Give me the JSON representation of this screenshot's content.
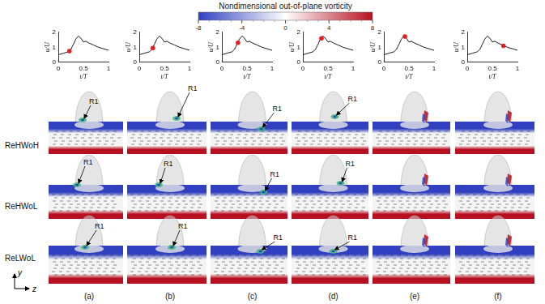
{
  "chart_data": [
    {
      "type": "line",
      "x_label": "t/T",
      "y_label": "u/U",
      "color": "#000000",
      "x": [
        0,
        0.1,
        0.2,
        0.25,
        0.3,
        0.35,
        0.4,
        0.45,
        0.5,
        0.55,
        0.6,
        0.7,
        0.8,
        0.9,
        1
      ],
      "values": [
        0.5,
        0.6,
        0.7,
        0.85,
        1.2,
        1.55,
        1.75,
        1.6,
        1.35,
        1.4,
        1.3,
        1.15,
        1.0,
        0.9,
        0.8
      ],
      "highlight": {
        "x": 0.22,
        "y": 0.75,
        "color": "#e02020"
      },
      "xlim": [
        0,
        1
      ],
      "xticks": [
        0,
        0.5,
        1
      ],
      "ylim": [
        0,
        2
      ],
      "yticks": [
        0,
        1,
        2
      ]
    },
    {
      "type": "line",
      "x_label": "t/T",
      "y_label": "u/U",
      "color": "#000000",
      "x": [
        0,
        0.1,
        0.2,
        0.25,
        0.3,
        0.35,
        0.4,
        0.45,
        0.5,
        0.55,
        0.6,
        0.7,
        0.8,
        0.9,
        1
      ],
      "values": [
        0.5,
        0.6,
        0.7,
        0.85,
        1.2,
        1.55,
        1.75,
        1.6,
        1.35,
        1.4,
        1.3,
        1.15,
        1.0,
        0.9,
        0.8
      ],
      "highlight": {
        "x": 0.27,
        "y": 0.95,
        "color": "#e02020"
      },
      "xlim": [
        0,
        1
      ],
      "xticks": [
        0,
        0.5,
        1
      ],
      "ylim": [
        0,
        2
      ],
      "yticks": [
        0,
        1,
        2
      ]
    },
    {
      "type": "line",
      "x_label": "t/T",
      "y_label": "u/U",
      "color": "#000000",
      "x": [
        0,
        0.1,
        0.2,
        0.25,
        0.3,
        0.35,
        0.4,
        0.45,
        0.5,
        0.55,
        0.6,
        0.7,
        0.8,
        0.9,
        1
      ],
      "values": [
        0.5,
        0.6,
        0.7,
        0.85,
        1.2,
        1.55,
        1.75,
        1.6,
        1.35,
        1.4,
        1.3,
        1.15,
        1.0,
        0.9,
        0.8
      ],
      "highlight": {
        "x": 0.32,
        "y": 1.3,
        "color": "#e02020"
      },
      "xlim": [
        0,
        1
      ],
      "xticks": [
        0,
        0.5,
        1
      ],
      "ylim": [
        0,
        2
      ],
      "yticks": [
        0,
        1,
        2
      ]
    },
    {
      "type": "line",
      "x_label": "t/T",
      "y_label": "u/U",
      "color": "#000000",
      "x": [
        0,
        0.1,
        0.2,
        0.25,
        0.3,
        0.35,
        0.4,
        0.45,
        0.5,
        0.55,
        0.6,
        0.7,
        0.8,
        0.9,
        1
      ],
      "values": [
        0.5,
        0.6,
        0.7,
        0.85,
        1.2,
        1.55,
        1.75,
        1.6,
        1.35,
        1.4,
        1.3,
        1.15,
        1.0,
        0.9,
        0.8
      ],
      "highlight": {
        "x": 0.37,
        "y": 1.6,
        "color": "#e02020"
      },
      "xlim": [
        0,
        1
      ],
      "xticks": [
        0,
        0.5,
        1
      ],
      "ylim": [
        0,
        2
      ],
      "yticks": [
        0,
        1,
        2
      ]
    },
    {
      "type": "line",
      "x_label": "t/T",
      "y_label": "u/U",
      "color": "#000000",
      "x": [
        0,
        0.1,
        0.2,
        0.25,
        0.3,
        0.35,
        0.4,
        0.45,
        0.5,
        0.55,
        0.6,
        0.7,
        0.8,
        0.9,
        1
      ],
      "values": [
        0.5,
        0.6,
        0.7,
        0.85,
        1.2,
        1.55,
        1.75,
        1.6,
        1.35,
        1.4,
        1.3,
        1.15,
        1.0,
        0.9,
        0.8
      ],
      "highlight": {
        "x": 0.42,
        "y": 1.72,
        "color": "#e02020"
      },
      "xlim": [
        0,
        1
      ],
      "xticks": [
        0,
        0.5,
        1
      ],
      "ylim": [
        0,
        2
      ],
      "yticks": [
        0,
        1,
        2
      ]
    },
    {
      "type": "line",
      "x_label": "t/T",
      "y_label": "u/U",
      "color": "#000000",
      "x": [
        0,
        0.1,
        0.2,
        0.25,
        0.3,
        0.35,
        0.4,
        0.45,
        0.5,
        0.55,
        0.6,
        0.7,
        0.8,
        0.9,
        1
      ],
      "values": [
        0.5,
        0.6,
        0.7,
        0.85,
        1.2,
        1.55,
        1.75,
        1.6,
        1.35,
        1.4,
        1.3,
        1.15,
        1.0,
        0.9,
        0.8
      ],
      "highlight": {
        "x": 0.72,
        "y": 1.1,
        "color": "#e02020"
      },
      "xlim": [
        0,
        1
      ],
      "xticks": [
        0,
        0.5,
        1
      ],
      "ylim": [
        0,
        2
      ],
      "yticks": [
        0,
        1,
        2
      ]
    }
  ],
  "figure": {
    "colorbar": {
      "title": "Nondimensional out-of-plane vorticity",
      "range": [
        -8,
        8
      ],
      "ticks": [
        -8,
        -4,
        0,
        4,
        8
      ],
      "colors": [
        "#3040c0",
        "#ffffff",
        "#b81020"
      ]
    },
    "rows": [
      {
        "label": "ReHWoH",
        "r1": [
          true,
          true,
          true,
          true,
          false,
          false
        ]
      },
      {
        "label": "ReHWoL",
        "r1": [
          true,
          true,
          true,
          true,
          false,
          false
        ]
      },
      {
        "label": "ReLWoL",
        "r1": [
          true,
          true,
          true,
          true,
          false,
          false
        ]
      }
    ],
    "annotation": "R1",
    "panels": [
      "(a)",
      "(b)",
      "(c)",
      "(d)",
      "(e)",
      "(f)"
    ],
    "axes": {
      "vertical": "y",
      "horizontal": "z"
    }
  }
}
